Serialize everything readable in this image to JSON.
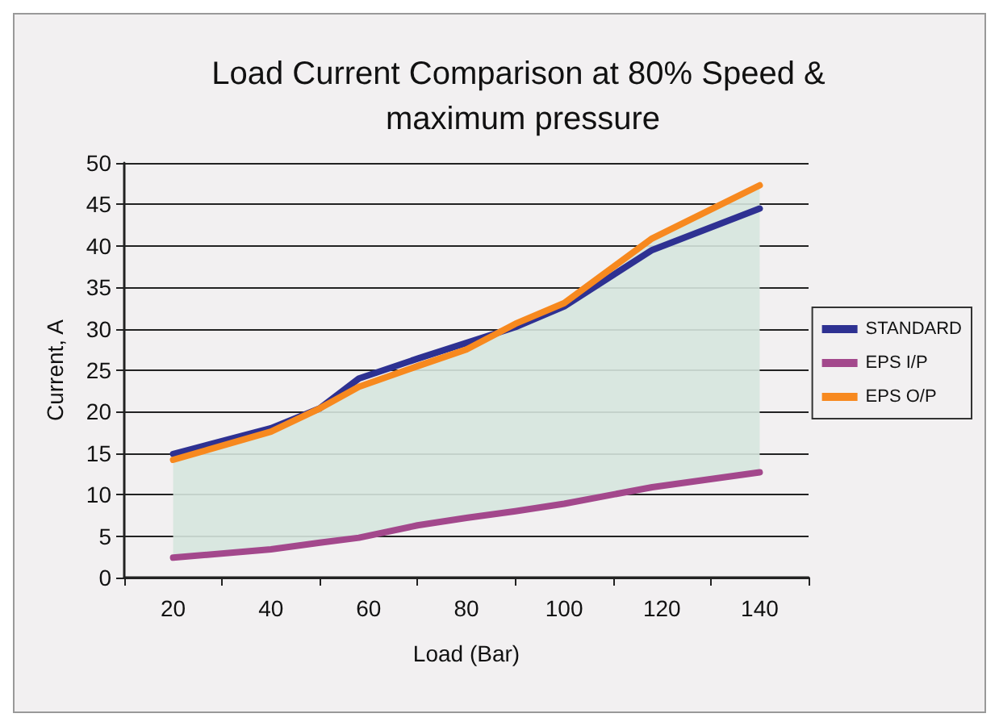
{
  "chart_data": {
    "type": "line",
    "title": "Load Current Comparison at 80% Speed & maximum pressure",
    "xlabel": "Load (Bar)",
    "ylabel": "Current, A",
    "x": [
      20,
      40,
      50,
      58,
      70,
      80,
      90,
      100,
      118,
      140
    ],
    "series": [
      {
        "name": "STANDARD",
        "color": "#2e3192",
        "values": [
          14.9,
          18.0,
          20.4,
          24.0,
          26.4,
          28.3,
          30.2,
          32.7,
          39.5,
          44.5
        ]
      },
      {
        "name": "EPS I/P",
        "color": "#a3488c",
        "values": [
          2.4,
          3.4,
          4.2,
          4.8,
          6.3,
          7.2,
          8.0,
          8.9,
          10.9,
          12.7
        ]
      },
      {
        "name": "EPS O/P",
        "color": "#f7891f",
        "values": [
          14.2,
          17.6,
          20.4,
          23.0,
          25.5,
          27.5,
          30.6,
          33.1,
          40.9,
          47.3
        ],
        "lower": [
          2.4,
          3.4,
          4.2,
          4.8,
          6.3,
          7.2,
          8.0,
          8.9,
          10.9,
          12.7
        ],
        "upper": [
          14.2,
          17.6,
          20.4,
          23.0,
          25.5,
          27.5,
          30.6,
          33.1,
          40.9,
          47.3
        ]
      }
    ],
    "xlim": [
      10,
      150
    ],
    "xticks": [
      {
        "value": 10,
        "label": null
      },
      20,
      {
        "value": 30,
        "label": null
      },
      40,
      {
        "value": 50,
        "label": null
      },
      60,
      {
        "value": 70,
        "label": null
      },
      80,
      {
        "value": 90,
        "label": null
      },
      100,
      {
        "value": 110,
        "label": null
      },
      120,
      {
        "value": 130,
        "label": null
      },
      140,
      {
        "value": 150,
        "label": null
      }
    ],
    "ylim": [
      0,
      50
    ],
    "yticks": [
      0,
      5,
      10,
      15,
      20,
      25,
      30,
      35,
      40,
      45,
      50
    ],
    "grid": "y",
    "legend": "right",
    "marker": "none",
    "line_style": "solid"
  }
}
